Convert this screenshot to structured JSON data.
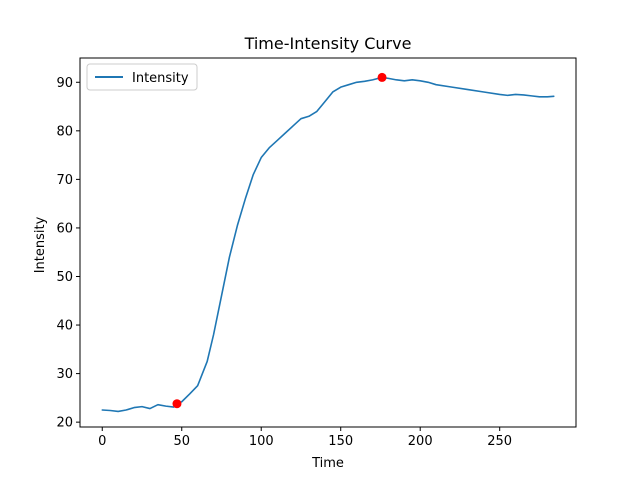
{
  "chart_data": {
    "type": "line",
    "title": "Time-Intensity Curve",
    "xlabel": "Time",
    "ylabel": "Intensity",
    "xlim": [
      -14,
      298
    ],
    "ylim": [
      19,
      95
    ],
    "xticks": [
      0,
      50,
      100,
      150,
      200,
      250
    ],
    "yticks": [
      20,
      30,
      40,
      50,
      60,
      70,
      80,
      90
    ],
    "grid": false,
    "legend_position": "top-left",
    "series": [
      {
        "name": "Intensity",
        "color": "#1f77b4",
        "x": [
          0,
          5,
          10,
          15,
          20,
          25,
          30,
          35,
          40,
          45,
          47,
          50,
          55,
          60,
          63,
          66,
          70,
          75,
          80,
          85,
          90,
          95,
          100,
          105,
          110,
          115,
          120,
          125,
          130,
          135,
          140,
          145,
          150,
          155,
          160,
          165,
          170,
          176,
          180,
          185,
          190,
          195,
          200,
          205,
          210,
          220,
          230,
          240,
          250,
          255,
          260,
          265,
          270,
          275,
          280,
          284
        ],
        "y": [
          22.5,
          22.4,
          22.2,
          22.5,
          23.0,
          23.2,
          22.8,
          23.6,
          23.3,
          23.1,
          23.8,
          24.2,
          25.8,
          27.5,
          30.0,
          32.5,
          38.0,
          46.0,
          54.0,
          60.5,
          66.0,
          71.0,
          74.5,
          76.5,
          78.0,
          79.5,
          81.0,
          82.5,
          83.0,
          84.0,
          86.0,
          88.0,
          89.0,
          89.5,
          90.0,
          90.2,
          90.5,
          91.0,
          90.8,
          90.5,
          90.3,
          90.5,
          90.3,
          90.0,
          89.5,
          89.0,
          88.5,
          88.0,
          87.5,
          87.3,
          87.5,
          87.4,
          87.2,
          87.0,
          87.0,
          87.1
        ]
      }
    ],
    "markers": {
      "color": "#ff0000",
      "points": [
        {
          "x": 47,
          "y": 23.8
        },
        {
          "x": 176,
          "y": 91.0
        }
      ]
    }
  }
}
